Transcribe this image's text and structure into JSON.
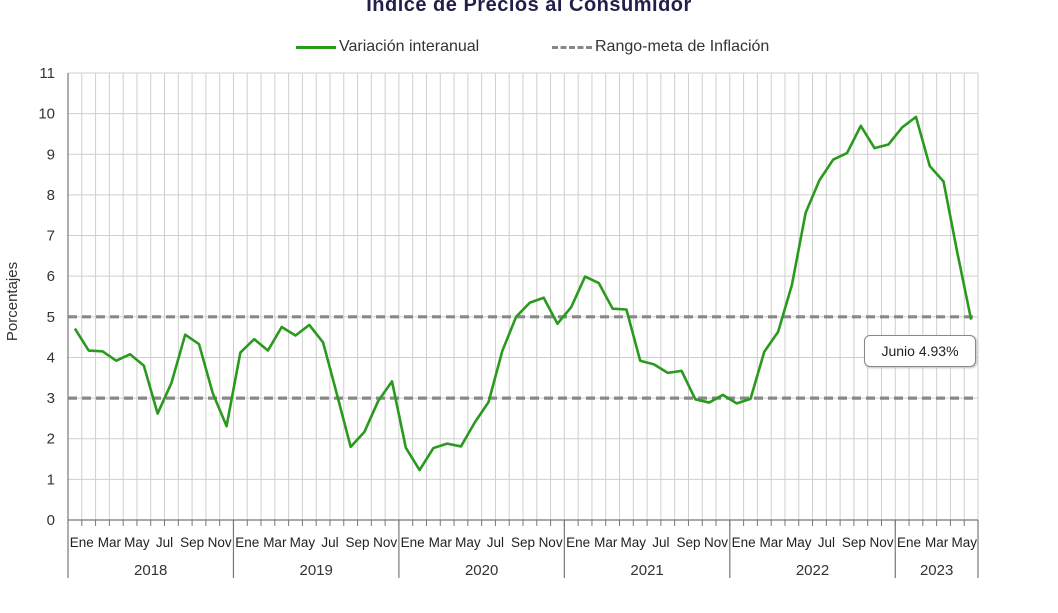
{
  "title": "Índice de Precios al Consumidor",
  "legend": {
    "series_label": "Variación interanual",
    "band_label": "Rango-meta de Inflación"
  },
  "callout": "Junio 4.93%",
  "colors": {
    "series": "#2a9a1e",
    "band": "#888888",
    "grid": "#cfcfcf"
  },
  "chart_data": {
    "type": "line",
    "title": "Índice de Precios al Consumidor",
    "ylabel": "Porcentajes",
    "xlabel": "",
    "ylim": [
      0,
      11
    ],
    "yticks": [
      0,
      1,
      2,
      3,
      4,
      5,
      6,
      7,
      8,
      9,
      10,
      11
    ],
    "grid": true,
    "legend_position": "top-center",
    "month_tick_labels": [
      "Ene",
      "Mar",
      "May",
      "Jul",
      "Sep",
      "Nov"
    ],
    "years": [
      "2018",
      "2019",
      "2020",
      "2021",
      "2022",
      "2023"
    ],
    "series": [
      {
        "name": "Variación interanual",
        "values": [
          4.71,
          4.17,
          4.15,
          3.92,
          4.08,
          3.8,
          2.62,
          3.37,
          4.56,
          4.33,
          3.12,
          2.31,
          4.12,
          4.45,
          4.17,
          4.75,
          4.54,
          4.8,
          4.37,
          3.1,
          1.8,
          2.17,
          2.93,
          3.41,
          1.78,
          1.23,
          1.77,
          1.88,
          1.81,
          2.4,
          2.9,
          4.16,
          5.0,
          5.35,
          5.47,
          4.83,
          5.24,
          5.99,
          5.83,
          5.2,
          5.18,
          3.92,
          3.83,
          3.62,
          3.67,
          2.97,
          2.89,
          3.08,
          2.87,
          2.98,
          4.14,
          4.63,
          5.78,
          7.56,
          8.36,
          8.87,
          9.03,
          9.7,
          9.15,
          9.24,
          9.66,
          9.92,
          8.71,
          8.33,
          6.58,
          4.93
        ]
      },
      {
        "name": "Rango-meta de Inflación",
        "values": [
          3,
          5
        ]
      }
    ]
  }
}
